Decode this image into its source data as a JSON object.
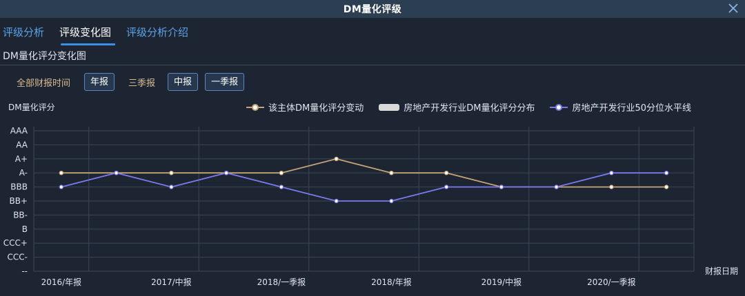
{
  "window": {
    "title": "DM量化评级"
  },
  "tabs": [
    {
      "label": "评级分析",
      "active": false
    },
    {
      "label": "评级变化图",
      "active": true
    },
    {
      "label": "评级分析介绍",
      "active": false
    }
  ],
  "section_title": "DM量化评分变化图",
  "filters": {
    "all": "全部财报时间",
    "annual": "年报",
    "q3": "三季报",
    "half": "中报",
    "q1": "一季报"
  },
  "legend": [
    {
      "label": "该主体DM量化评分变动",
      "color": "#c8a578"
    },
    {
      "label": "房地产开发行业DM量化评分分布",
      "color": "#d9d9d9"
    },
    {
      "label": "房地产开发行业50分位水平线",
      "color": "#7b7bf0"
    }
  ],
  "colors": {
    "accent": "#3b8fe4",
    "series_subject": "#c8a578",
    "series_median": "#7b7bf0"
  },
  "chart_data": {
    "type": "line",
    "ylabel": "DM量化评分",
    "xlabel": "财报日期",
    "y_categories": [
      "--",
      "CCC-",
      "CCC+",
      "B",
      "BB-",
      "BB+",
      "BBB",
      "A-",
      "A+",
      "AA",
      "AAA"
    ],
    "x_labels_shown": [
      "2016/年报",
      "2017/中报",
      "2018/一季报",
      "2018/年报",
      "2019/中报",
      "2020/一季报"
    ],
    "series": [
      {
        "name": "该主体DM量化评分变动",
        "values": [
          "A-",
          "A-",
          "A-",
          "A-",
          "A-",
          "A+",
          "A-",
          "A-",
          "BBB",
          "BBB",
          "BBB",
          "BBB"
        ]
      },
      {
        "name": "房地产开发行业50分位水平线",
        "values": [
          "BBB",
          "A-",
          "BBB",
          "A-",
          "BBB",
          "BB+",
          "BB+",
          "BBB",
          "BBB",
          "BBB",
          "A-",
          "A-"
        ]
      }
    ],
    "grid": true
  }
}
